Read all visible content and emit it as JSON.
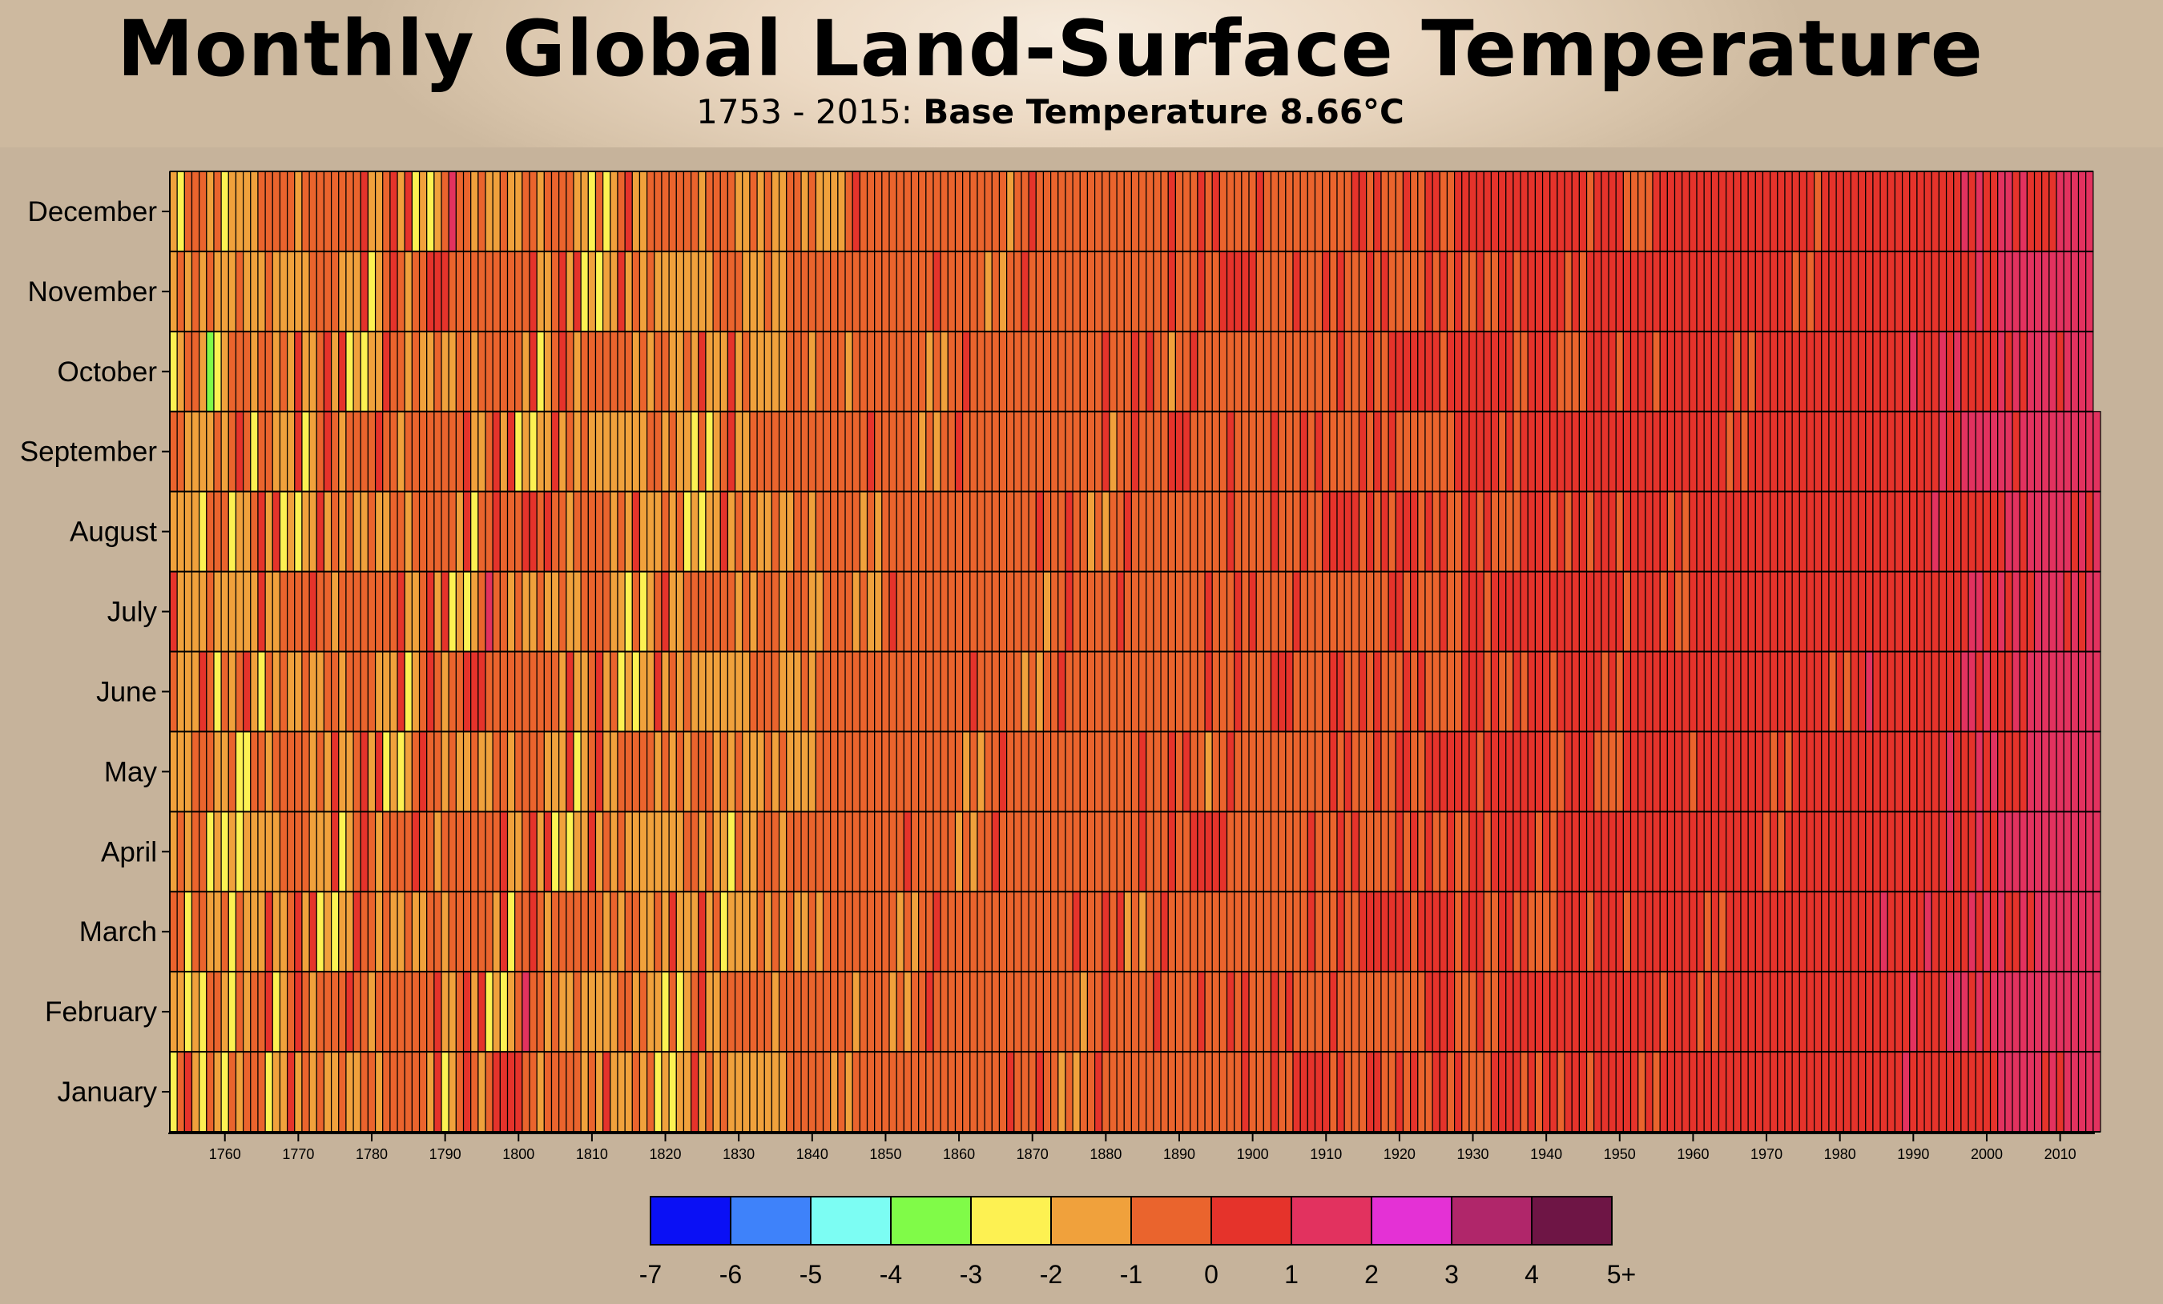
{
  "title": "Monthly Global Land-Surface Temperature",
  "subtitle": {
    "range": "1753 - 2015:",
    "base": "Base Temperature 8.66°C"
  },
  "chart_data": {
    "type": "heatmap",
    "title": "Monthly Global Land-Surface Temperature",
    "subtitle": "1753 - 2015: Base Temperature 8.66°C",
    "base_temperature": 8.66,
    "x_range": [
      1753,
      2015
    ],
    "x_ticks": [
      1760,
      1770,
      1780,
      1790,
      1800,
      1810,
      1820,
      1830,
      1840,
      1850,
      1860,
      1870,
      1880,
      1890,
      1900,
      1910,
      1920,
      1930,
      1940,
      1950,
      1960,
      1970,
      1980,
      1990,
      2000,
      2010
    ],
    "months": [
      "January",
      "February",
      "March",
      "April",
      "May",
      "June",
      "July",
      "August",
      "September",
      "October",
      "November",
      "December"
    ],
    "last_month_2015": "September",
    "legend_bins": [
      {
        "label": "-7",
        "color": "#0a10f5"
      },
      {
        "label": "-6",
        "color": "#3e82fa"
      },
      {
        "label": "-5",
        "color": "#7cfdf3"
      },
      {
        "label": "-4",
        "color": "#80fb48"
      },
      {
        "label": "-3",
        "color": "#fdf152"
      },
      {
        "label": "-2",
        "color": "#f0a13c"
      },
      {
        "label": "-1",
        "color": "#ea642d"
      },
      {
        "label": "0",
        "color": "#e5332b"
      },
      {
        "label": "1",
        "color": "#e2325f"
      },
      {
        "label": "2",
        "color": "#e431d5"
      },
      {
        "label": "3",
        "color": "#b0266a"
      },
      {
        "label": "4",
        "color": "#6e1545"
      }
    ],
    "legend_end_label": "5+",
    "variance_trend": [
      {
        "year": 1760,
        "approx_variance_c": -1.2
      },
      {
        "year": 1780,
        "approx_variance_c": -1.0
      },
      {
        "year": 1800,
        "approx_variance_c": -0.9
      },
      {
        "year": 1820,
        "approx_variance_c": -1.4
      },
      {
        "year": 1850,
        "approx_variance_c": -0.7
      },
      {
        "year": 1880,
        "approx_variance_c": -0.5
      },
      {
        "year": 1900,
        "approx_variance_c": -0.3
      },
      {
        "year": 1930,
        "approx_variance_c": 0.0
      },
      {
        "year": 1950,
        "approx_variance_c": 0.1
      },
      {
        "year": 1980,
        "approx_variance_c": 0.3
      },
      {
        "year": 2000,
        "approx_variance_c": 0.9
      },
      {
        "year": 2015,
        "approx_variance_c": 1.3
      }
    ]
  }
}
